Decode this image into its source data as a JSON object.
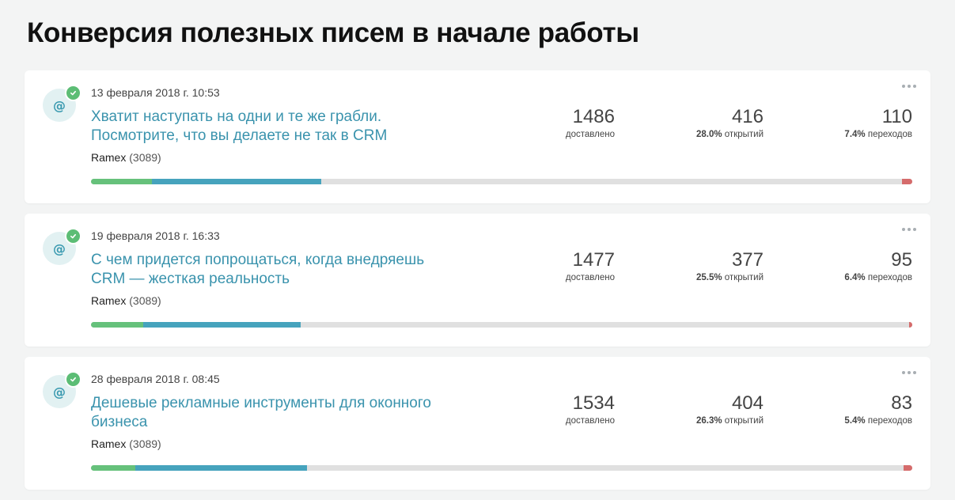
{
  "page": {
    "title": "Конверсия полезных писем в начале работы"
  },
  "colors": {
    "delivered": "#66c17b",
    "opened": "#46a3bd",
    "rest": "#e0e0e0",
    "bounce": "#d56b6b",
    "link": "#3a93ad"
  },
  "icons": {
    "avatar": "at-icon",
    "badge": "check-icon",
    "menu": "more-icon"
  },
  "campaigns": [
    {
      "date": "13 февраля 2018 г. 10:53",
      "subject": "Хватит наступать на одни и те же грабли. Посмотрите, что вы делаете не так в CRM",
      "sender": "Ramex",
      "sender_count": "(3089)",
      "delivered": "1486",
      "delivered_label": "доставлено",
      "opened": "416",
      "opened_pct": "28.0%",
      "opened_label": "открытий",
      "clicks": "110",
      "clicks_pct": "7.4%",
      "clicks_label": "переходов",
      "progress": {
        "green": 0.074,
        "blue": 0.206,
        "red": 0.013
      }
    },
    {
      "date": "19 февраля 2018 г. 16:33",
      "subject": "С чем придется попрощаться, когда внедряешь CRM — жесткая реальность",
      "sender": "Ramex",
      "sender_count": "(3089)",
      "delivered": "1477",
      "delivered_label": "доставлено",
      "opened": "377",
      "opened_pct": "25.5%",
      "opened_label": "открытий",
      "clicks": "95",
      "clicks_pct": "6.4%",
      "clicks_label": "переходов",
      "progress": {
        "green": 0.064,
        "blue": 0.191,
        "red": 0.004
      }
    },
    {
      "date": "28 февраля 2018 г. 08:45",
      "subject": "Дешевые рекламные инструменты для оконного бизнеса",
      "sender": "Ramex",
      "sender_count": "(3089)",
      "delivered": "1534",
      "delivered_label": "доставлено",
      "opened": "404",
      "opened_pct": "26.3%",
      "opened_label": "открытий",
      "clicks": "83",
      "clicks_pct": "5.4%",
      "clicks_label": "переходов",
      "progress": {
        "green": 0.054,
        "blue": 0.209,
        "red": 0.011
      }
    }
  ]
}
